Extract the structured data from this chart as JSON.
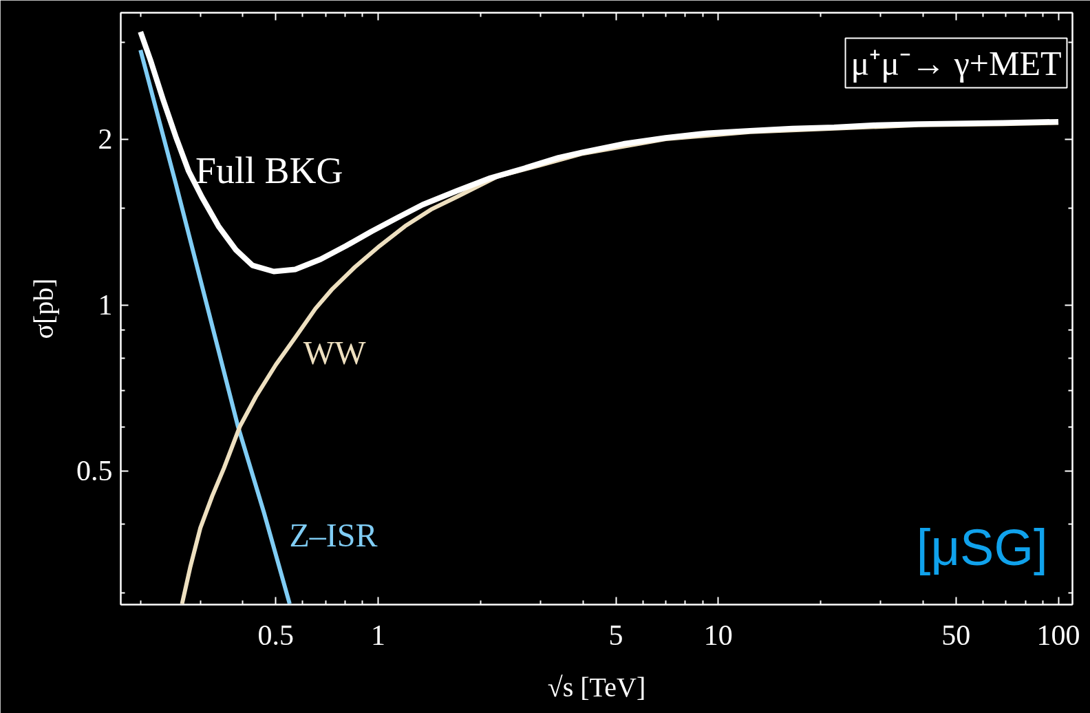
{
  "chart_data": {
    "type": "line",
    "xlabel": "√s [TeV]",
    "ylabel": "σ[pb]",
    "log": "xy",
    "xlim": [
      0.175,
      110
    ],
    "ylim": [
      0.286,
      3.39
    ],
    "xticks": [
      {
        "value": 0.2,
        "label": null
      },
      {
        "value": 0.3,
        "label": null
      },
      {
        "value": 0.4,
        "label": null
      },
      0.5,
      {
        "value": 0.6,
        "label": null
      },
      {
        "value": 0.7,
        "label": null
      },
      {
        "value": 0.8,
        "label": null
      },
      {
        "value": 0.9,
        "label": null
      },
      1,
      {
        "value": 2,
        "label": null
      },
      {
        "value": 3,
        "label": null
      },
      {
        "value": 4,
        "label": null
      },
      5,
      {
        "value": 6,
        "label": null
      },
      {
        "value": 7,
        "label": null
      },
      {
        "value": 8,
        "label": null
      },
      {
        "value": 9,
        "label": null
      },
      10,
      {
        "value": 20,
        "label": null
      },
      {
        "value": 30,
        "label": null
      },
      {
        "value": 40,
        "label": null
      },
      50,
      {
        "value": 60,
        "label": null
      },
      {
        "value": 70,
        "label": null
      },
      {
        "value": 80,
        "label": null
      },
      {
        "value": 90,
        "label": null
      },
      100
    ],
    "yticks": [
      {
        "value": 0.3,
        "label": null
      },
      {
        "value": 0.4,
        "label": null
      },
      0.5,
      {
        "value": 0.6,
        "label": null
      },
      {
        "value": 0.7,
        "label": null
      },
      {
        "value": 0.8,
        "label": null
      },
      {
        "value": 0.9,
        "label": null
      },
      1,
      {
        "value": 1.5,
        "label": null
      },
      2,
      {
        "value": 3,
        "label": null
      }
    ],
    "series": [
      {
        "name": "Full BKG",
        "color": "#ffffff",
        "x": [
          0.2,
          0.214,
          0.233,
          0.254,
          0.277,
          0.303,
          0.339,
          0.381,
          0.427,
          0.493,
          0.57,
          0.677,
          0.804,
          0.956,
          1.14,
          1.35,
          1.7,
          2.14,
          2.69,
          3.39,
          3.96,
          5.26,
          7,
          9.31,
          12.4,
          16.5,
          21.9,
          29.2,
          38.8,
          68.6,
          100
        ],
        "values": [
          3.13,
          2.78,
          2.36,
          2.02,
          1.75,
          1.57,
          1.39,
          1.26,
          1.18,
          1.15,
          1.16,
          1.21,
          1.28,
          1.36,
          1.44,
          1.52,
          1.61,
          1.7,
          1.77,
          1.85,
          1.89,
          1.96,
          2.01,
          2.05,
          2.07,
          2.09,
          2.1,
          2.12,
          2.13,
          2.14,
          2.15
        ]
      },
      {
        "name": "WW",
        "color": "#eee0c0",
        "x": [
          0.265,
          0.28,
          0.3,
          0.325,
          0.352,
          0.392,
          0.437,
          0.5,
          0.572,
          0.654,
          0.729,
          0.852,
          1.01,
          1.2,
          1.43,
          1.7,
          2.24,
          2.97,
          3.96,
          7,
          12.4,
          21.9,
          38.8,
          68.6,
          100
        ],
        "values": [
          0.287,
          0.334,
          0.394,
          0.45,
          0.506,
          0.602,
          0.682,
          0.779,
          0.875,
          0.985,
          1.065,
          1.17,
          1.28,
          1.39,
          1.49,
          1.57,
          1.71,
          1.79,
          1.88,
          2.0,
          2.06,
          2.09,
          2.12,
          2.13,
          2.14
        ]
      },
      {
        "name": "Z–ISR",
        "color": "#80cdf5",
        "x": [
          0.2,
          0.254,
          0.387,
          0.461,
          0.549
        ],
        "values": [
          2.9,
          1.66,
          0.602,
          0.421,
          0.287
        ]
      }
    ],
    "annotations": [
      "μ⁺μ⁻→ γ+MET",
      "[μSG]"
    ]
  }
}
